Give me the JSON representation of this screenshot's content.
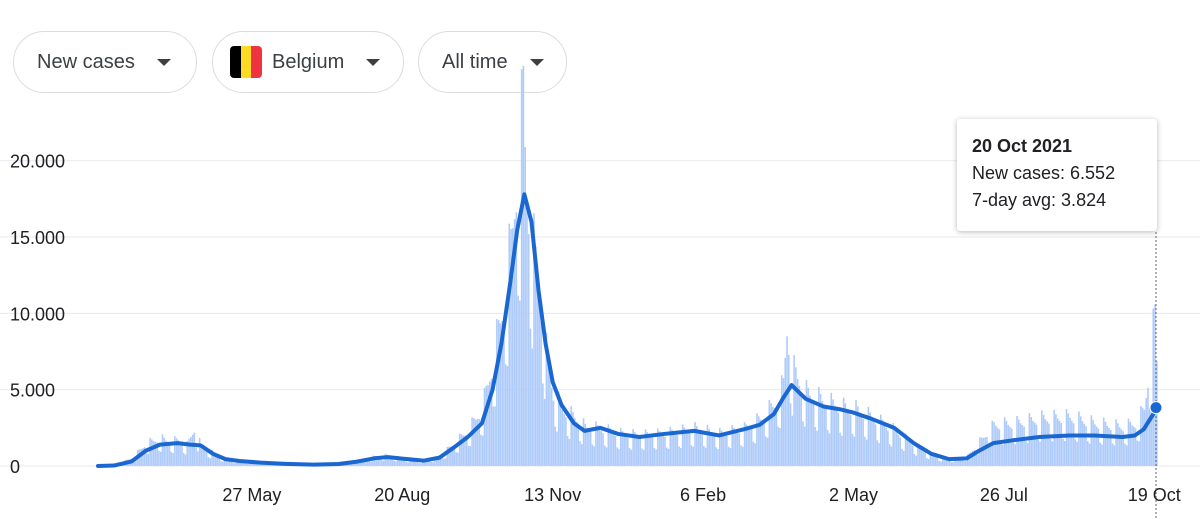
{
  "controls": {
    "metric": {
      "label": "New cases"
    },
    "region": {
      "label": "Belgium",
      "flag_colors": [
        "#000000",
        "#FDDA24",
        "#EF3340"
      ]
    },
    "range": {
      "label": "All time"
    }
  },
  "tooltip": {
    "date": "20 Oct 2021",
    "cases_text": "New cases: 6.552",
    "avg_text": "7-day avg: 3.824"
  },
  "colors": {
    "bars": "#aecbfa",
    "avg_line": "#1a67d2",
    "grid": "#e8eaed",
    "cursor": "#5f6368"
  },
  "chart_data": {
    "type": "bar",
    "title": "",
    "xlabel": "",
    "ylabel": "",
    "x_start": "2020-03-01",
    "x_end": "2021-10-20",
    "ylim": [
      0,
      22800
    ],
    "y_ticks": [
      0,
      5000,
      10000,
      15000,
      20000
    ],
    "y_tick_labels": [
      "0",
      "5.000",
      "10.000",
      "15.000",
      "20.000"
    ],
    "x_ticks": [
      {
        "date": "2020-05-27",
        "label": "27 May"
      },
      {
        "date": "2020-08-20",
        "label": "20 Aug"
      },
      {
        "date": "2020-11-13",
        "label": "13 Nov"
      },
      {
        "date": "2021-02-06",
        "label": "6 Feb"
      },
      {
        "date": "2021-05-02",
        "label": "2 May"
      },
      {
        "date": "2021-07-26",
        "label": "26 Jul"
      },
      {
        "date": "2021-10-19",
        "label": "19 Oct"
      }
    ],
    "grid": true,
    "series": [
      {
        "name": "New cases",
        "kind": "bar",
        "points": [
          [
            "2020-03-01",
            0
          ],
          [
            "2020-03-10",
            50
          ],
          [
            "2020-03-20",
            500
          ],
          [
            "2020-03-28",
            1400
          ],
          [
            "2020-04-05",
            1700
          ],
          [
            "2020-04-10",
            1500
          ],
          [
            "2020-04-15",
            1600
          ],
          [
            "2020-04-20",
            1300
          ],
          [
            "2020-04-24",
            2300
          ],
          [
            "2020-04-28",
            1200
          ],
          [
            "2020-05-05",
            800
          ],
          [
            "2020-05-12",
            400
          ],
          [
            "2020-05-20",
            300
          ],
          [
            "2020-06-01",
            200
          ],
          [
            "2020-06-15",
            120
          ],
          [
            "2020-07-01",
            80
          ],
          [
            "2020-07-15",
            130
          ],
          [
            "2020-07-25",
            300
          ],
          [
            "2020-08-05",
            600
          ],
          [
            "2020-08-12",
            650
          ],
          [
            "2020-08-20",
            450
          ],
          [
            "2020-09-01",
            300
          ],
          [
            "2020-09-10",
            600
          ],
          [
            "2020-09-18",
            1400
          ],
          [
            "2020-09-26",
            2200
          ],
          [
            "2020-10-04",
            3600
          ],
          [
            "2020-10-10",
            6500
          ],
          [
            "2020-10-15",
            9500
          ],
          [
            "2020-10-20",
            13500
          ],
          [
            "2020-10-23",
            17500
          ],
          [
            "2020-10-26",
            20800
          ],
          [
            "2020-10-27",
            22800
          ],
          [
            "2020-10-29",
            17000
          ],
          [
            "2020-11-01",
            14000
          ],
          [
            "2020-11-05",
            11000
          ],
          [
            "2020-11-09",
            7000
          ],
          [
            "2020-11-13",
            4500
          ],
          [
            "2020-11-18",
            3500
          ],
          [
            "2020-11-25",
            3000
          ],
          [
            "2020-12-01",
            2400
          ],
          [
            "2020-12-10",
            2300
          ],
          [
            "2020-12-20",
            2000
          ],
          [
            "2021-01-01",
            1900
          ],
          [
            "2021-01-15",
            2000
          ],
          [
            "2021-02-01",
            2300
          ],
          [
            "2021-02-15",
            2000
          ],
          [
            "2021-03-01",
            2300
          ],
          [
            "2021-03-10",
            2900
          ],
          [
            "2021-03-18",
            3800
          ],
          [
            "2021-03-23",
            5000
          ],
          [
            "2021-03-25",
            8500
          ],
          [
            "2021-03-28",
            6000
          ],
          [
            "2021-04-05",
            4500
          ],
          [
            "2021-04-15",
            4000
          ],
          [
            "2021-04-25",
            3600
          ],
          [
            "2021-05-02",
            3500
          ],
          [
            "2021-05-12",
            3000
          ],
          [
            "2021-05-25",
            2200
          ],
          [
            "2021-06-05",
            1300
          ],
          [
            "2021-06-15",
            700
          ],
          [
            "2021-06-25",
            400
          ],
          [
            "2021-07-05",
            600
          ],
          [
            "2021-07-12",
            1500
          ],
          [
            "2021-07-20",
            2500
          ],
          [
            "2021-08-01",
            2600
          ],
          [
            "2021-08-15",
            2900
          ],
          [
            "2021-09-01",
            3000
          ],
          [
            "2021-09-15",
            2600
          ],
          [
            "2021-10-01",
            2400
          ],
          [
            "2021-10-08",
            2600
          ],
          [
            "2021-10-13",
            3500
          ],
          [
            "2021-10-19",
            9200
          ],
          [
            "2021-10-20",
            6552
          ]
        ]
      },
      {
        "name": "7-day avg",
        "kind": "line",
        "points": [
          [
            "2020-03-01",
            0
          ],
          [
            "2020-03-10",
            30
          ],
          [
            "2020-03-20",
            300
          ],
          [
            "2020-03-28",
            1000
          ],
          [
            "2020-04-05",
            1400
          ],
          [
            "2020-04-15",
            1500
          ],
          [
            "2020-04-22",
            1400
          ],
          [
            "2020-04-28",
            1350
          ],
          [
            "2020-05-05",
            800
          ],
          [
            "2020-05-12",
            450
          ],
          [
            "2020-05-20",
            330
          ],
          [
            "2020-06-01",
            220
          ],
          [
            "2020-06-15",
            140
          ],
          [
            "2020-07-01",
            90
          ],
          [
            "2020-07-15",
            130
          ],
          [
            "2020-07-25",
            280
          ],
          [
            "2020-08-05",
            520
          ],
          [
            "2020-08-12",
            580
          ],
          [
            "2020-08-20",
            480
          ],
          [
            "2020-09-01",
            350
          ],
          [
            "2020-09-10",
            550
          ],
          [
            "2020-09-18",
            1200
          ],
          [
            "2020-09-26",
            1900
          ],
          [
            "2020-10-04",
            2800
          ],
          [
            "2020-10-10",
            5000
          ],
          [
            "2020-10-15",
            8000
          ],
          [
            "2020-10-20",
            12000
          ],
          [
            "2020-10-24",
            15500
          ],
          [
            "2020-10-28",
            17800
          ],
          [
            "2020-11-01",
            16000
          ],
          [
            "2020-11-05",
            11500
          ],
          [
            "2020-11-09",
            8000
          ],
          [
            "2020-11-13",
            5500
          ],
          [
            "2020-11-18",
            4000
          ],
          [
            "2020-11-25",
            2800
          ],
          [
            "2020-12-01",
            2300
          ],
          [
            "2020-12-10",
            2500
          ],
          [
            "2020-12-20",
            2100
          ],
          [
            "2021-01-01",
            1900
          ],
          [
            "2021-01-15",
            2100
          ],
          [
            "2021-02-01",
            2300
          ],
          [
            "2021-02-15",
            2000
          ],
          [
            "2021-03-01",
            2400
          ],
          [
            "2021-03-10",
            2700
          ],
          [
            "2021-03-18",
            3400
          ],
          [
            "2021-03-23",
            4400
          ],
          [
            "2021-03-28",
            5300
          ],
          [
            "2021-04-05",
            4400
          ],
          [
            "2021-04-15",
            3900
          ],
          [
            "2021-04-25",
            3700
          ],
          [
            "2021-05-02",
            3500
          ],
          [
            "2021-05-12",
            3100
          ],
          [
            "2021-05-25",
            2500
          ],
          [
            "2021-06-05",
            1500
          ],
          [
            "2021-06-15",
            800
          ],
          [
            "2021-06-25",
            450
          ],
          [
            "2021-07-05",
            500
          ],
          [
            "2021-07-12",
            1000
          ],
          [
            "2021-07-20",
            1500
          ],
          [
            "2021-08-01",
            1700
          ],
          [
            "2021-08-15",
            1900
          ],
          [
            "2021-09-01",
            2000
          ],
          [
            "2021-09-15",
            2000
          ],
          [
            "2021-10-01",
            1900
          ],
          [
            "2021-10-08",
            2000
          ],
          [
            "2021-10-13",
            2400
          ],
          [
            "2021-10-19",
            3500
          ],
          [
            "2021-10-20",
            3824
          ]
        ]
      }
    ]
  }
}
